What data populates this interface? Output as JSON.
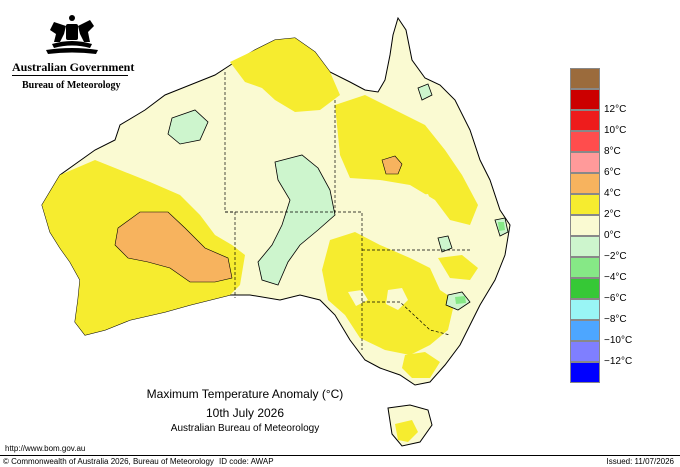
{
  "header": {
    "government": "Australian Government",
    "bureau": "Bureau of Meteorology"
  },
  "legend": {
    "items": [
      {
        "label": "",
        "color": "#9b6b3c"
      },
      {
        "label": "12°C",
        "color": "#cc0000"
      },
      {
        "label": "10°C",
        "color": "#ee1c1c"
      },
      {
        "label": "8°C",
        "color": "#ff4d4d"
      },
      {
        "label": "6°C",
        "color": "#ff9a9a"
      },
      {
        "label": "4°C",
        "color": "#f7b35e"
      },
      {
        "label": "2°C",
        "color": "#f6ec2f"
      },
      {
        "label": "0°C",
        "color": "#fafad2"
      },
      {
        "label": "−2°C",
        "color": "#cdf5cd"
      },
      {
        "label": "−4°C",
        "color": "#86e886"
      },
      {
        "label": "−6°C",
        "color": "#36c836"
      },
      {
        "label": "−8°C",
        "color": "#99f5f5"
      },
      {
        "label": "−10°C",
        "color": "#4da6ff"
      },
      {
        "label": "−12°C",
        "color": "#7f7fff"
      },
      {
        "label": "",
        "color": "#0000ff"
      }
    ]
  },
  "map": {
    "title": "Maximum Temperature Anomaly (°C)",
    "date": "10th July 2026",
    "source": "Australian Bureau of Meteorology"
  },
  "footer": {
    "url": "http://www.bom.gov.au",
    "copyright": "© Commonwealth of Australia 2026, Bureau of Meteorology",
    "id_code": "ID code: AWAP",
    "issued": "Issued: 11/07/2026"
  }
}
